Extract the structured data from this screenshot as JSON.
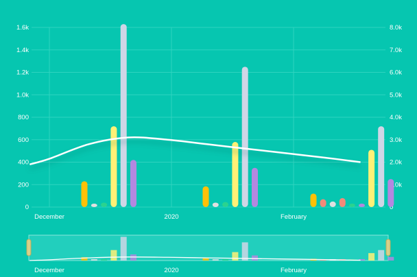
{
  "colors": {
    "background": "#06c6b0",
    "gridline": "#2fd4c0",
    "trend": "#ffffff",
    "scrollbar_bg": "#22cfbd"
  },
  "chart_data": {
    "type": "bar",
    "title": "",
    "xlabel": "",
    "ylabel": "",
    "y_left": {
      "ylim": [
        0,
        1600
      ],
      "ticks": [
        "0",
        "200",
        "400",
        "600",
        "800",
        "1.0k",
        "1.2k",
        "1.4k",
        "1.6k"
      ]
    },
    "y_right": {
      "ylim": [
        0,
        8000
      ],
      "ticks": [
        "0",
        "1.0k",
        "2.0k",
        "3.0k",
        "4.0k",
        "5.0k",
        "6.0k",
        "7.0k",
        "8.0k"
      ]
    },
    "x_tick_labels": [
      "December",
      "2020",
      "February"
    ],
    "grid": true,
    "legend": "none",
    "groups": [
      {
        "x_label_position_hint": "early-december",
        "bars": [
          {
            "value": 230,
            "color": "#ffc107"
          },
          {
            "value": 30,
            "color": "#e0e0e0"
          },
          {
            "value": 40,
            "color": "#2ad38f"
          },
          {
            "value": 720,
            "color": "#fff176"
          },
          {
            "value": 1630,
            "color": "#cfd6e6"
          },
          {
            "value": 420,
            "color": "#b388e0"
          }
        ]
      },
      {
        "bars": [
          {
            "value": 185,
            "color": "#ffc107"
          },
          {
            "value": 40,
            "color": "#e0e0e0"
          },
          {
            "value": 45,
            "color": "#2ad38f"
          },
          {
            "value": 580,
            "color": "#fff176"
          },
          {
            "value": 1250,
            "color": "#cfd6e6"
          },
          {
            "value": 350,
            "color": "#b388e0"
          }
        ]
      },
      {
        "bars": [
          {
            "value": 120,
            "color": "#ffc107"
          },
          {
            "value": 70,
            "color": "#f28a7a"
          },
          {
            "value": 50,
            "color": "#e0e0e0"
          },
          {
            "value": 80,
            "color": "#f28a7a"
          },
          {
            "value": 15,
            "color": "#2ad38f"
          },
          {
            "value": 15,
            "color": "#b388e0"
          },
          {
            "value": 510,
            "color": "#fff176"
          },
          {
            "value": 720,
            "color": "#cfd6e6"
          },
          {
            "value": 250,
            "color": "#b388e0"
          }
        ]
      }
    ],
    "trend_series": {
      "axis": "left",
      "x_days_from_dec1": [
        -5,
        0,
        10,
        20,
        30,
        40,
        50,
        60,
        70,
        79
      ],
      "values": [
        380,
        430,
        560,
        620,
        600,
        560,
        520,
        480,
        440,
        400
      ]
    }
  }
}
